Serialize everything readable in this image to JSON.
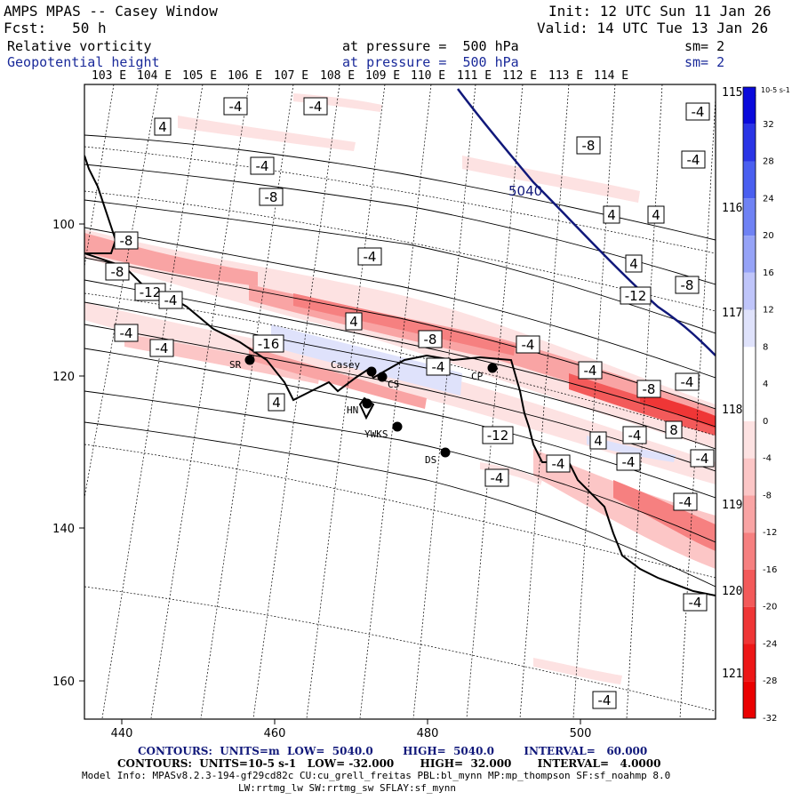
{
  "header": {
    "title": "AMPS MPAS -- Casey Window",
    "forecast": "Fcst:   50 h",
    "init": "Init: 12 UTC Sun 11 Jan 26",
    "valid": "Valid: 14 UTC Tue 13 Jan 26",
    "field1": {
      "name": "Relative vorticity",
      "level": "at pressure =  500 hPa",
      "smooth": "sm= 2"
    },
    "field2": {
      "name": "Geopotential height",
      "level": "at pressure =  500 hPa",
      "smooth": "sm= 2"
    }
  },
  "top_lon_labels": [
    "103 E",
    "104 E",
    "105 E",
    "106 E",
    "107 E",
    "108 E",
    "109 E",
    "110 E",
    "111 E",
    "112 E",
    "113 E",
    "114 E"
  ],
  "right_lon_labels": [
    "115 E",
    "116 E",
    "117 E",
    "118 E",
    "119 E",
    "120 E",
    "121 E"
  ],
  "x_ticks": [
    "440",
    "460",
    "480",
    "500"
  ],
  "y_ticks": [
    "100",
    "120",
    "140",
    "160"
  ],
  "colorbar": {
    "unit": "10-5 s-1",
    "labels": [
      "32",
      "28",
      "24",
      "20",
      "16",
      "12",
      "8",
      "4",
      "0",
      "-4",
      "-8",
      "-12",
      "-16",
      "-20",
      "-24",
      "-28",
      "-32"
    ],
    "colors": [
      "#0a0adb",
      "#2a35e6",
      "#4a5ff0",
      "#6f82f4",
      "#96a3f7",
      "#bfc5fa",
      "#dfe2fb",
      "#ffffff",
      "#ffffff",
      "#fde2e2",
      "#fcc6c6",
      "#f9a4a4",
      "#f68080",
      "#f35a5a",
      "#ef3636",
      "#ed1717",
      "#ea0000"
    ]
  },
  "height_contour_label": "5040",
  "vort_labels": [
    "-4",
    "-4",
    "4",
    "-4",
    "-4",
    "-8",
    "-4",
    "-8",
    "4",
    "4",
    "4",
    "-8",
    "-4",
    "-8",
    "-12",
    "-8",
    "-12",
    "-4",
    "4",
    "-4",
    "-8",
    "-4",
    "-4",
    "-16",
    "-4",
    "-4",
    "-4",
    "-8",
    "4",
    "8",
    "-4",
    "4",
    "-4",
    "-12",
    "-4",
    "-4",
    "-4",
    "-4",
    "-4",
    "-4",
    "-8",
    "4",
    "-4",
    "8"
  ],
  "stations": [
    "SR",
    "Casey",
    "CS",
    "HN",
    "YWKS",
    "DS",
    "CP"
  ],
  "footer": {
    "line1": "CONTOURS:  UNITS=m  LOW=  5040.0        HIGH=  5040.0        INTERVAL=   60.000",
    "line2": "CONTOURS:  UNITS=10-5 s-1   LOW= -32.000       HIGH=  32.000       INTERVAL=   4.0000",
    "line3": "Model Info: MPASv8.2.3-194-gf29cd82c CU:cu_grell_freitas PBL:bl_mynn MP:mp_thompson SF:sf_noahmp 8.0",
    "line4": "LW:rrtmg_lw SW:rrtmg_sw SFLAY:sf_mynn"
  }
}
